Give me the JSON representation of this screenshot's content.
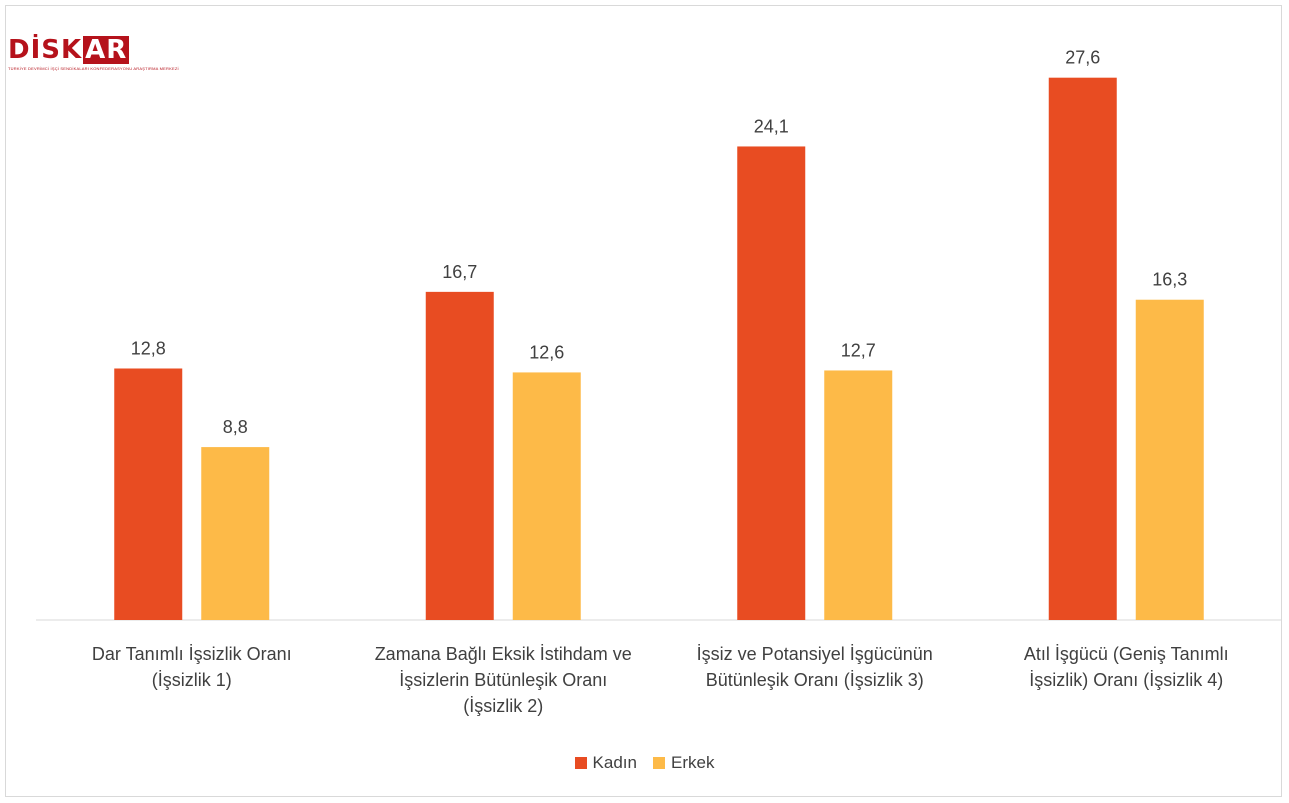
{
  "logo": {
    "text_main": "DİSK",
    "text_accent": "AR",
    "subtitle": "TÜRKİYE DEVRİMCİ İŞÇİ SENDİKALARI KONFEDERASYONU ARAŞTIRMA MERKEZİ"
  },
  "chart_data": {
    "type": "bar",
    "title": "",
    "xlabel": "",
    "ylabel": "",
    "ylim": [
      0,
      28.5
    ],
    "grid": false,
    "legend_position": "bottom",
    "categories": [
      [
        "Dar Tanımlı İşsizlik Oranı",
        "(İşsizlik 1)"
      ],
      [
        "Zamana Bağlı Eksik İstihdam ve",
        "İşsizlerin Bütünleşik Oranı",
        "(İşsizlik 2)"
      ],
      [
        "İşsiz ve Potansiyel İşgücünün",
        "Bütünleşik Oranı (İşsizlik 3)"
      ],
      [
        "Atıl İşgücü (Geniş Tanımlı",
        "İşsizlik) Oranı (İşsizlik 4)"
      ]
    ],
    "series": [
      {
        "name": "Kadın",
        "color": "#e84c22",
        "values": [
          12.8,
          16.7,
          24.1,
          27.6
        ],
        "labels": [
          "12,8",
          "16,7",
          "24,1",
          "27,6"
        ]
      },
      {
        "name": "Erkek",
        "color": "#fdba48",
        "values": [
          8.8,
          12.6,
          12.7,
          16.3
        ],
        "labels": [
          "8,8",
          "12,6",
          "12,7",
          "16,3"
        ]
      }
    ]
  }
}
